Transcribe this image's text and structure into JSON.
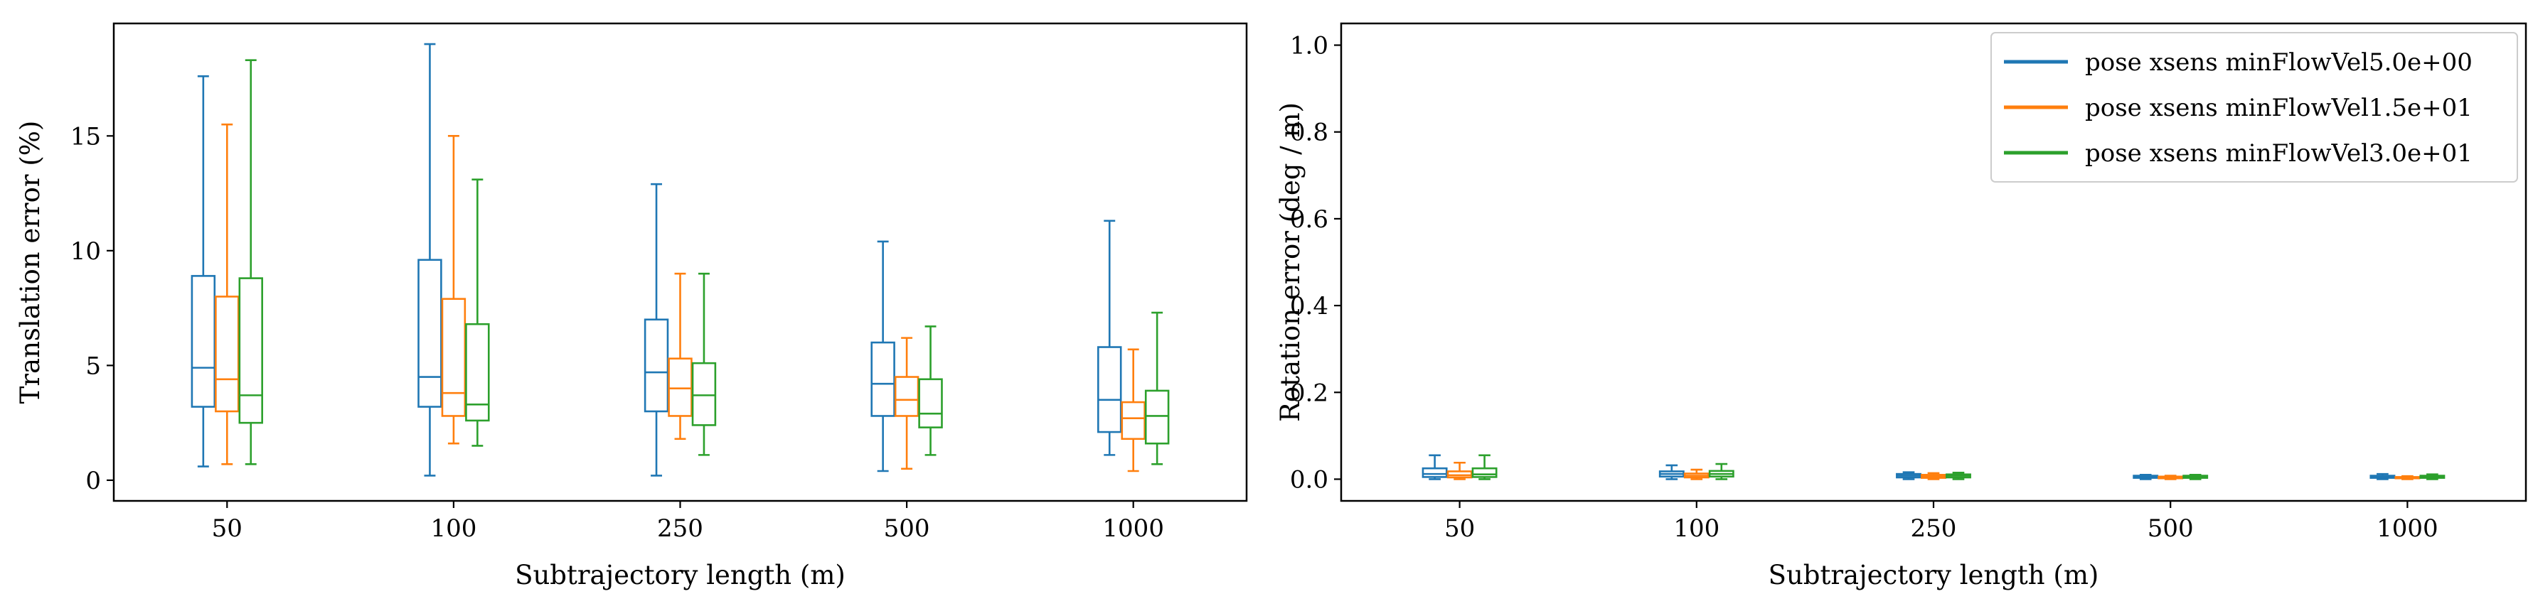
{
  "chart_data": [
    {
      "type": "box",
      "xlabel": "Subtrajectory length (m)",
      "ylabel": "Translation error (%)",
      "categories": [
        "50",
        "100",
        "250",
        "500",
        "1000"
      ],
      "ylim": [
        -0.9,
        19.9
      ],
      "yticks": [
        0,
        5,
        10,
        15
      ],
      "grid": false,
      "series": [
        {
          "name": "pose xsens minFlowVel5.0e+00",
          "color": "#1f77b4",
          "boxes": [
            {
              "whislo": 0.6,
              "q1": 3.2,
              "med": 4.9,
              "q3": 8.9,
              "whishi": 17.6
            },
            {
              "whislo": 0.2,
              "q1": 3.2,
              "med": 4.5,
              "q3": 9.6,
              "whishi": 19.0
            },
            {
              "whislo": 0.2,
              "q1": 3.0,
              "med": 4.7,
              "q3": 7.0,
              "whishi": 12.9
            },
            {
              "whislo": 0.4,
              "q1": 2.8,
              "med": 4.2,
              "q3": 6.0,
              "whishi": 10.4
            },
            {
              "whislo": 1.1,
              "q1": 2.1,
              "med": 3.5,
              "q3": 5.8,
              "whishi": 11.3
            }
          ]
        },
        {
          "name": "pose xsens minFlowVel1.5e+01",
          "color": "#ff7f0e",
          "boxes": [
            {
              "whislo": 0.7,
              "q1": 3.0,
              "med": 4.4,
              "q3": 8.0,
              "whishi": 15.5
            },
            {
              "whislo": 1.6,
              "q1": 2.8,
              "med": 3.8,
              "q3": 7.9,
              "whishi": 15.0
            },
            {
              "whislo": 1.8,
              "q1": 2.8,
              "med": 4.0,
              "q3": 5.3,
              "whishi": 9.0
            },
            {
              "whislo": 0.5,
              "q1": 2.8,
              "med": 3.5,
              "q3": 4.5,
              "whishi": 6.2
            },
            {
              "whislo": 0.4,
              "q1": 1.8,
              "med": 2.7,
              "q3": 3.4,
              "whishi": 5.7
            }
          ]
        },
        {
          "name": "pose xsens minFlowVel3.0e+01",
          "color": "#2ca02c",
          "boxes": [
            {
              "whislo": 0.7,
              "q1": 2.5,
              "med": 3.7,
              "q3": 8.8,
              "whishi": 18.3
            },
            {
              "whislo": 1.5,
              "q1": 2.6,
              "med": 3.3,
              "q3": 6.8,
              "whishi": 13.1
            },
            {
              "whislo": 1.1,
              "q1": 2.4,
              "med": 3.7,
              "q3": 5.1,
              "whishi": 9.0
            },
            {
              "whislo": 1.1,
              "q1": 2.3,
              "med": 2.9,
              "q3": 4.4,
              "whishi": 6.7
            },
            {
              "whislo": 0.7,
              "q1": 1.6,
              "med": 2.8,
              "q3": 3.9,
              "whishi": 7.3
            }
          ]
        }
      ]
    },
    {
      "type": "box",
      "xlabel": "Subtrajectory length (m)",
      "ylabel": "Rotation error (deg / m)",
      "categories": [
        "50",
        "100",
        "250",
        "500",
        "1000"
      ],
      "ylim": [
        -0.05,
        1.05
      ],
      "yticks": [
        0.0,
        0.2,
        0.4,
        0.6,
        0.8,
        1.0
      ],
      "ytick_labels": [
        "0.0",
        "0.2",
        "0.4",
        "0.6",
        "0.8",
        "1.0"
      ],
      "grid": false,
      "legend_position": "top-right",
      "series": [
        {
          "name": "pose xsens minFlowVel5.0e+00",
          "color": "#1f77b4",
          "boxes": [
            {
              "whislo": 0.0,
              "q1": 0.005,
              "med": 0.012,
              "q3": 0.025,
              "whishi": 0.055
            },
            {
              "whislo": 0.0,
              "q1": 0.006,
              "med": 0.012,
              "q3": 0.018,
              "whishi": 0.032
            },
            {
              "whislo": 0.0,
              "q1": 0.004,
              "med": 0.008,
              "q3": 0.012,
              "whishi": 0.016
            },
            {
              "whislo": 0.0,
              "q1": 0.003,
              "med": 0.005,
              "q3": 0.008,
              "whishi": 0.01
            },
            {
              "whislo": 0.0,
              "q1": 0.003,
              "med": 0.005,
              "q3": 0.008,
              "whishi": 0.012
            }
          ]
        },
        {
          "name": "pose xsens minFlowVel1.5e+01",
          "color": "#ff7f0e",
          "boxes": [
            {
              "whislo": 0.0,
              "q1": 0.004,
              "med": 0.009,
              "q3": 0.018,
              "whishi": 0.038
            },
            {
              "whislo": 0.0,
              "q1": 0.004,
              "med": 0.008,
              "q3": 0.013,
              "whishi": 0.022
            },
            {
              "whislo": 0.0,
              "q1": 0.003,
              "med": 0.006,
              "q3": 0.01,
              "whishi": 0.014
            },
            {
              "whislo": 0.0,
              "q1": 0.002,
              "med": 0.004,
              "q3": 0.006,
              "whishi": 0.008
            },
            {
              "whislo": 0.0,
              "q1": 0.002,
              "med": 0.003,
              "q3": 0.005,
              "whishi": 0.007
            }
          ]
        },
        {
          "name": "pose xsens minFlowVel3.0e+01",
          "color": "#2ca02c",
          "boxes": [
            {
              "whislo": 0.0,
              "q1": 0.005,
              "med": 0.011,
              "q3": 0.025,
              "whishi": 0.055
            },
            {
              "whislo": 0.0,
              "q1": 0.006,
              "med": 0.012,
              "q3": 0.019,
              "whishi": 0.035
            },
            {
              "whislo": 0.0,
              "q1": 0.004,
              "med": 0.008,
              "q3": 0.011,
              "whishi": 0.015
            },
            {
              "whislo": 0.0,
              "q1": 0.003,
              "med": 0.005,
              "q3": 0.008,
              "whishi": 0.01
            },
            {
              "whislo": 0.0,
              "q1": 0.003,
              "med": 0.005,
              "q3": 0.008,
              "whishi": 0.011
            }
          ]
        }
      ]
    }
  ]
}
